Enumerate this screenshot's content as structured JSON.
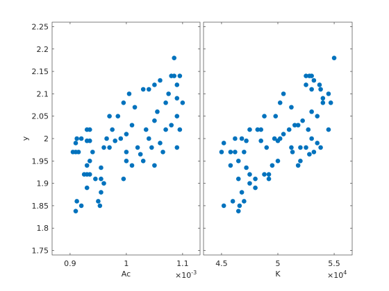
{
  "chart_data": [
    {
      "type": "scatter",
      "xlabel": "Ac",
      "ylabel": "y",
      "x_exponent_base": "×10",
      "x_exponent": "-3",
      "color": "#0072bd",
      "x": [
        0.91,
        0.912,
        0.905,
        0.91,
        0.915,
        0.91,
        0.912,
        0.92,
        0.925,
        0.93,
        0.935,
        0.93,
        0.92,
        0.93,
        0.935,
        0.93,
        0.935,
        0.93,
        0.935,
        0.94,
        0.945,
        0.95,
        0.953,
        0.955,
        0.955,
        0.955,
        0.96,
        0.96,
        0.965,
        0.97,
        0.97,
        0.975,
        0.98,
        0.985,
        0.99,
        0.995,
        0.995,
        1.0,
        1.0,
        1.005,
        1.01,
        1.01,
        1.015,
        1.02,
        1.025,
        1.03,
        1.03,
        1.035,
        1.04,
        1.04,
        1.045,
        1.05,
        1.05,
        1.055,
        1.06,
        1.06,
        1.065,
        1.07,
        1.07,
        1.075,
        1.08,
        1.085,
        1.085,
        1.09,
        1.09,
        1.095,
        1.09,
        1.095,
        1.1,
        1.09,
        1.08,
        1.0,
        1.05
      ],
      "values": [
        1.838,
        1.86,
        1.97,
        1.97,
        1.97,
        1.99,
        2.0,
        2.0,
        1.92,
        1.92,
        1.92,
        1.89,
        1.85,
        1.94,
        1.95,
        1.995,
        1.995,
        2.02,
        2.02,
        1.97,
        1.91,
        1.86,
        1.85,
        1.88,
        1.91,
        1.935,
        1.9,
        1.98,
        2.0,
        2.05,
        1.98,
        2.02,
        1.995,
        2.05,
        2.0,
        2.08,
        1.91,
        1.95,
        2.01,
        2.1,
        1.94,
        2.03,
        2.07,
        1.98,
        1.965,
        1.95,
        2.11,
        2.02,
        2.0,
        2.11,
        1.98,
        2.04,
        2.12,
        2.06,
        1.99,
        2.13,
        1.97,
        2.02,
        2.08,
        2.1,
        2.14,
        2.18,
        2.14,
        2.05,
        2.12,
        2.02,
        1.98,
        2.14,
        2.08,
        2.09,
        2.03,
        1.97,
        1.94
      ],
      "xlim": [
        0.868,
        1.131
      ],
      "xticks": [
        0.9,
        1,
        1.1
      ],
      "ylim": [
        1.74,
        2.26
      ],
      "yticks": [
        1.75,
        1.8,
        1.85,
        1.9,
        1.95,
        2,
        2.05,
        2.1,
        2.15,
        2.2,
        2.25
      ]
    },
    {
      "type": "scatter",
      "xlabel": "K",
      "x_exponent_base": "×10",
      "x_exponent": "4",
      "color": "#0072bd",
      "x": [
        4.65,
        4.6,
        4.5,
        4.58,
        4.7,
        4.52,
        4.62,
        4.68,
        4.75,
        4.88,
        4.92,
        4.8,
        4.52,
        4.58,
        4.65,
        4.72,
        4.85,
        4.75,
        4.82,
        4.62,
        4.65,
        4.7,
        4.66,
        4.68,
        4.92,
        4.72,
        4.75,
        4.9,
        4.97,
        4.98,
        5.25,
        4.85,
        5.0,
        4.88,
        5.02,
        5.02,
        4.8,
        5.0,
        5.05,
        5.05,
        4.95,
        5.15,
        5.12,
        5.12,
        5.28,
        5.2,
        5.3,
        5.1,
        5.3,
        5.38,
        5.2,
        5.22,
        5.25,
        5.3,
        5.35,
        5.32,
        5.32,
        5.27,
        5.4,
        5.45,
        5.25,
        5.5,
        5.28,
        5.35,
        5.37,
        5.45,
        5.38,
        5.3,
        5.47,
        5.4,
        5.18,
        5.13,
        5.18
      ],
      "values": [
        1.838,
        1.86,
        1.97,
        1.97,
        1.97,
        1.99,
        2.0,
        2.0,
        1.92,
        1.92,
        1.92,
        1.89,
        1.85,
        1.94,
        1.95,
        1.995,
        1.995,
        2.02,
        2.02,
        1.97,
        1.91,
        1.86,
        1.85,
        1.88,
        1.91,
        1.935,
        1.9,
        1.98,
        2.0,
        2.05,
        1.98,
        2.02,
        1.995,
        2.05,
        2.0,
        2.08,
        1.91,
        1.95,
        2.01,
        2.1,
        1.94,
        2.03,
        2.07,
        1.98,
        1.965,
        1.95,
        2.11,
        2.02,
        2.0,
        2.11,
        1.98,
        2.04,
        2.12,
        2.06,
        1.99,
        2.13,
        1.97,
        2.02,
        2.08,
        2.1,
        2.14,
        2.18,
        2.14,
        2.05,
        2.12,
        2.02,
        1.98,
        2.14,
        2.08,
        2.09,
        2.03,
        1.97,
        1.94
      ],
      "xlim": [
        4.34,
        5.66
      ],
      "xticks": [
        4.5,
        5,
        5.5
      ],
      "ylim": [
        1.74,
        2.26
      ]
    }
  ]
}
